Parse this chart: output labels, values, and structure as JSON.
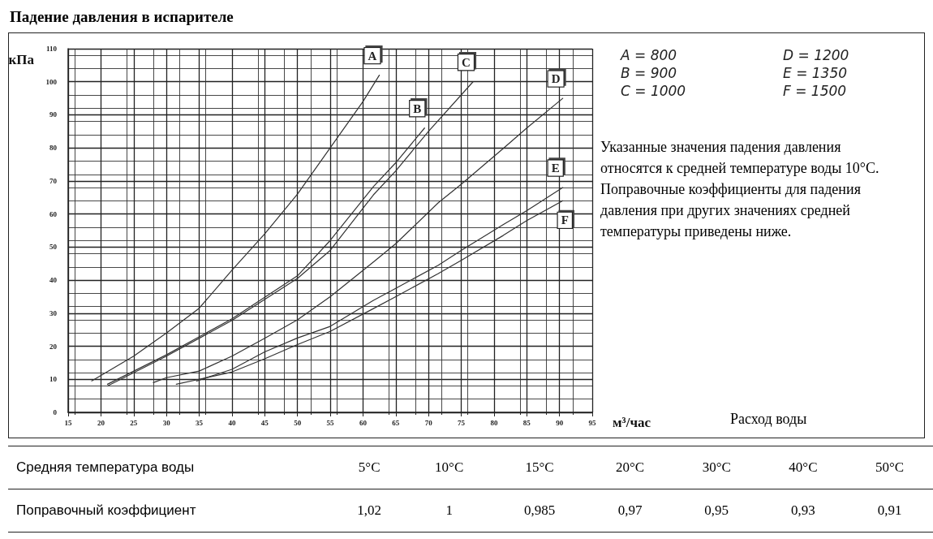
{
  "chart_data": {
    "type": "line",
    "title": "Падение давления в испарителе",
    "xlabel": "м³/час",
    "ylabel": "кПа",
    "xlim": [
      15,
      95
    ],
    "xticks": [
      15,
      20,
      25,
      30,
      35,
      40,
      45,
      50,
      55,
      60,
      65,
      70,
      75,
      80,
      85,
      90,
      95
    ],
    "ylim": [
      0,
      110
    ],
    "yticks": [
      0,
      10,
      20,
      30,
      40,
      50,
      60,
      70,
      80,
      90,
      100,
      110
    ],
    "grid": true,
    "marker": "none",
    "line_style": "solid",
    "annotations": [
      "A = 800",
      "B = 900",
      "C = 1000",
      "D = 1200",
      "E = 1350",
      "F = 1500",
      "Указанные значения падения давления относятся к средней температуре воды 10°C. Поправочные коэффициенты для падения давления при других значениях средней температуры приведены ниже.",
      "Расход воды",
      "Средняя температура воды",
      "5°C",
      "10°C",
      "15°C",
      "20°C",
      "30°C",
      "40°C",
      "50°C",
      "Поправочный коэффициент",
      "1,02",
      "1",
      "0,985",
      "0,97",
      "0,95",
      "0,93",
      "0,91"
    ],
    "series": [
      {
        "name": "A",
        "color": "#333333",
        "x": [
          18.6,
          25,
          30,
          35,
          40,
          45,
          50,
          55,
          60,
          62.5
        ],
        "values": [
          9.5,
          17,
          24,
          31.5,
          43,
          54,
          66,
          80,
          94,
          102
        ]
      },
      {
        "name": "B",
        "color": "#333333",
        "x": [
          21,
          30,
          40,
          50,
          55,
          61.6,
          65,
          69.4
        ],
        "values": [
          8.5,
          17.4,
          28.3,
          41.3,
          52,
          68.3,
          75.5,
          86
        ]
      },
      {
        "name": "C",
        "color": "#333333",
        "x": [
          21,
          30,
          40,
          50,
          55,
          61.6,
          65,
          70,
          76.8
        ],
        "values": [
          8,
          17,
          27.8,
          40.5,
          49,
          65.8,
          73,
          85,
          100
        ]
      },
      {
        "name": "D",
        "color": "#333333",
        "x": [
          28,
          30,
          35,
          40,
          45,
          50,
          55,
          61.6,
          65,
          71.5,
          75,
          81.4,
          85,
          90.5
        ],
        "values": [
          9,
          10.5,
          12.5,
          17,
          22.4,
          28,
          35,
          45.5,
          51,
          63.4,
          69,
          79.8,
          86,
          95
        ]
      },
      {
        "name": "E",
        "color": "#333333",
        "x": [
          34.6,
          40,
          45,
          50,
          55,
          61.6,
          65,
          71.5,
          75,
          81.4,
          85,
          90.5
        ],
        "values": [
          9.5,
          13,
          18.3,
          22.5,
          26,
          33.9,
          37.5,
          44.5,
          49,
          56.8,
          61,
          68
        ]
      },
      {
        "name": "F",
        "color": "#333333",
        "x": [
          31.5,
          35,
          40,
          45,
          50,
          55,
          61.6,
          65,
          71.5,
          75,
          81.4,
          85,
          90.5
        ],
        "values": [
          8.5,
          10,
          12.2,
          16.2,
          20.5,
          24.5,
          31.4,
          35,
          42,
          46,
          53.5,
          58,
          64
        ]
      }
    ]
  }
}
